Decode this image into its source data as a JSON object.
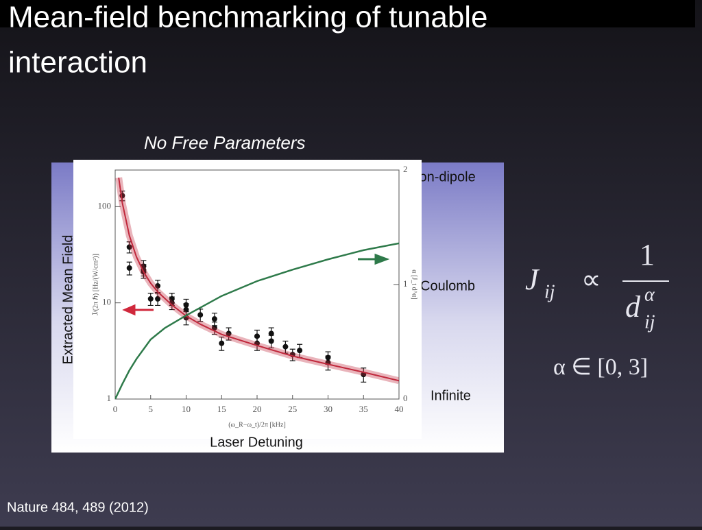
{
  "slide": {
    "title_lines": [
      "Mean-field benchmarking of tunable",
      "interaction"
    ],
    "subtitle": "No Free Parameters",
    "y_caption": "Extracted Mean Field",
    "x_caption": "Laser Detuning",
    "side_labels": [
      "Non-dipole",
      "Coulomb",
      "Infinite"
    ],
    "formula": {
      "lhs": "J",
      "lhs_sub": "ij",
      "relation": "∝",
      "numerator": "1",
      "denominator": "d",
      "den_sub": "ij",
      "den_sup": "α"
    },
    "range": "α ∈ [0, 3]",
    "citation": "Nature 484, 489 (2012)"
  },
  "chart_data": {
    "type": "scatter",
    "xlabel": "(ω_R−ω_t)/2π [kHz]",
    "ylabel": "J̄/(2π ℏ) [Hz/(W/cm²)]",
    "y2label": "α [J_t d^α]",
    "xlim": [
      0,
      40
    ],
    "xticks": [
      0,
      5,
      10,
      15,
      20,
      25,
      30,
      35,
      40
    ],
    "ylim": [
      1,
      240
    ],
    "yticks": [
      1,
      10,
      100
    ],
    "log_y": true,
    "y2lim": [
      0,
      2
    ],
    "y2ticks": [
      0,
      1,
      2
    ],
    "series": [
      {
        "mark": "point",
        "color": "#111111",
        "x": [
          1,
          2,
          2,
          4,
          4,
          4,
          5,
          6,
          6,
          8,
          8,
          10,
          10,
          10,
          12,
          14,
          14,
          15,
          16,
          20,
          20,
          22,
          22,
          24,
          25,
          26,
          30,
          30,
          35
        ],
        "values": [
          130,
          38,
          23,
          24,
          22,
          21,
          11,
          15,
          11,
          11,
          10,
          9.5,
          8.5,
          7,
          7.5,
          6.8,
          5.5,
          3.8,
          4.8,
          4.5,
          3.8,
          4.8,
          4,
          3.5,
          2.9,
          3.2,
          2.7,
          2.4,
          1.8
        ],
        "errors": [
          15,
          5,
          3.5,
          3.5,
          3,
          3,
          1.6,
          2.2,
          1.6,
          1.6,
          1.5,
          1.4,
          1.3,
          1.1,
          1.1,
          1,
          0.8,
          0.6,
          0.7,
          0.7,
          0.6,
          0.7,
          0.6,
          0.5,
          0.4,
          0.5,
          0.4,
          0.4,
          0.3
        ]
      },
      {
        "mark": "band",
        "color": "#c0283c",
        "x": [
          0.5,
          1,
          2,
          3,
          4,
          5,
          6,
          8,
          10,
          12,
          15,
          20,
          25,
          30,
          35,
          40
        ],
        "values": [
          200,
          110,
          50,
          30,
          21,
          16,
          13,
          9.5,
          7.3,
          6,
          4.7,
          3.6,
          2.8,
          2.3,
          1.9,
          1.55
        ]
      },
      {
        "mark": "line",
        "color": "#2e7a4a",
        "axis": "y2",
        "x": [
          0,
          1,
          2,
          3,
          5,
          7,
          10,
          15,
          20,
          25,
          30,
          35,
          40
        ],
        "values": [
          0,
          0.13,
          0.25,
          0.35,
          0.52,
          0.62,
          0.73,
          0.9,
          1.03,
          1.13,
          1.22,
          1.3,
          1.36
        ]
      }
    ]
  }
}
